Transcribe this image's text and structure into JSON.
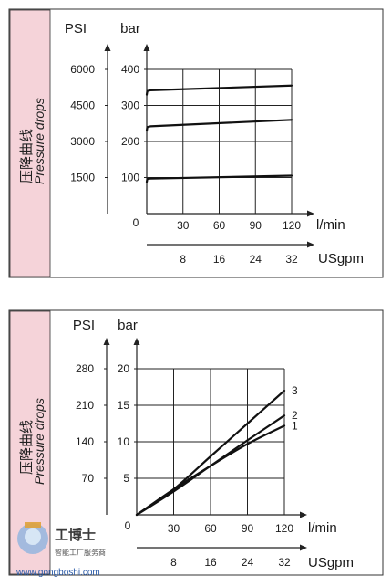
{
  "chart_data": [
    {
      "type": "line",
      "side_label_cn": "压降曲线",
      "side_label_en": "Pressure drops",
      "psi_label": "PSI",
      "bar_label": "bar",
      "flow_unit": "l/min",
      "usgpm_unit": "USgpm",
      "origin_label": "0",
      "psi_ticks": [
        "6000",
        "4500",
        "3000",
        "1500"
      ],
      "bar_ticks": [
        "400",
        "300",
        "200",
        "100"
      ],
      "psi_tick_bar_values": [
        400,
        300,
        200,
        100
      ],
      "x_ticks": [
        "30",
        "60",
        "90",
        "120"
      ],
      "usgpm_ticks": [
        "8",
        "16",
        "24",
        "32"
      ],
      "xlim": [
        0,
        120
      ],
      "ylim": [
        0,
        400
      ],
      "grid": true,
      "series": [
        {
          "x": [
            0,
            0.5,
            3,
            120
          ],
          "y": [
            330,
            340,
            342,
            355
          ]
        },
        {
          "x": [
            0,
            0.5,
            3,
            120
          ],
          "y": [
            230,
            240,
            242,
            260
          ]
        },
        {
          "x": [
            0,
            0.5,
            3,
            120
          ],
          "y": [
            88,
            96,
            97,
            105
          ]
        }
      ]
    },
    {
      "type": "line",
      "side_label_cn": "压降曲线",
      "side_label_en": "Pressure drops",
      "psi_label": "PSI",
      "bar_label": "bar",
      "flow_unit": "l/min",
      "usgpm_unit": "USgpm",
      "origin_label": "0",
      "psi_ticks": [
        "280",
        "210",
        "140",
        "70"
      ],
      "bar_ticks": [
        "20",
        "15",
        "10",
        "5"
      ],
      "psi_tick_bar_values": [
        20,
        15,
        10,
        5
      ],
      "x_ticks": [
        "30",
        "60",
        "90",
        "120"
      ],
      "usgpm_ticks": [
        "8",
        "16",
        "24",
        "32"
      ],
      "xlim": [
        0,
        120
      ],
      "ylim": [
        0,
        20
      ],
      "grid": true,
      "series": [
        {
          "name": "1",
          "x": [
            0,
            30,
            60,
            90,
            120
          ],
          "y": [
            0,
            3.5,
            6.7,
            9.7,
            12.2
          ]
        },
        {
          "name": "2",
          "x": [
            0,
            30,
            60,
            90,
            120
          ],
          "y": [
            0,
            3.2,
            6.7,
            10.2,
            13.6
          ]
        },
        {
          "name": "3",
          "x": [
            0,
            30,
            60,
            90,
            120
          ],
          "y": [
            0,
            3.5,
            8.0,
            12.5,
            17.0
          ]
        }
      ]
    }
  ],
  "watermark": {
    "name": "工博士",
    "sub": "智能工厂服务商",
    "url": "www.gongboshi.com"
  }
}
